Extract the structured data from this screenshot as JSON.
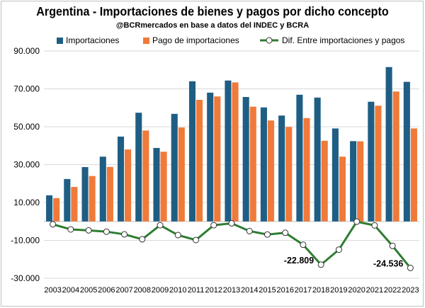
{
  "title": "Argentina - Importaciones de bienes y pagos por dicho concepto",
  "subtitle": "@BCRmercados en base a datos del INDEC y BCRA",
  "colors": {
    "imports": "#1f5e84",
    "payments": "#f07a3a",
    "diff": "#2e7d32",
    "grid": "#d9d9d9"
  },
  "chart_data": {
    "type": "bar",
    "categories": [
      "2003",
      "2004",
      "2005",
      "2006",
      "2007",
      "2008",
      "2009",
      "2010",
      "2011",
      "2012",
      "2013",
      "2014",
      "2015",
      "2016",
      "2017",
      "2018",
      "2019",
      "2020",
      "2021",
      "2022",
      "2023"
    ],
    "series": [
      {
        "name": "Importaciones",
        "type": "bar",
        "values": [
          13800,
          22400,
          28700,
          34200,
          44800,
          57400,
          38800,
          56800,
          74000,
          68000,
          74400,
          65700,
          60200,
          55900,
          66900,
          65400,
          49100,
          42400,
          63200,
          81500,
          73700
        ]
      },
      {
        "name": "Pago de importaciones",
        "type": "bar",
        "values": [
          12300,
          18200,
          24000,
          28800,
          38000,
          48000,
          36800,
          49600,
          64200,
          66000,
          73400,
          60600,
          53300,
          49900,
          54600,
          42600,
          34200,
          42300,
          61100,
          68600,
          49100
        ]
      },
      {
        "name": "Dif. Entre importaciones y pagos",
        "type": "line",
        "values": [
          -1500,
          -4200,
          -4700,
          -5400,
          -6800,
          -9400,
          -2000,
          -7200,
          -9800,
          -2000,
          -1000,
          -5100,
          -6900,
          -6000,
          -12300,
          -22809,
          -14900,
          -100,
          -2100,
          -12900,
          -24536
        ]
      }
    ],
    "data_labels": [
      {
        "category": "2018",
        "text": "-22.809"
      },
      {
        "category": "2023",
        "text": "-24.536"
      }
    ],
    "y_ticks": [
      "90.000",
      "70.000",
      "50.000",
      "30.000",
      "10.000",
      "-10.000",
      "-30.000"
    ],
    "y_tick_values": [
      90000,
      70000,
      50000,
      30000,
      10000,
      -10000,
      -30000
    ],
    "ylim": [
      -30000,
      90000
    ],
    "grid": true,
    "legend_position": "top"
  }
}
